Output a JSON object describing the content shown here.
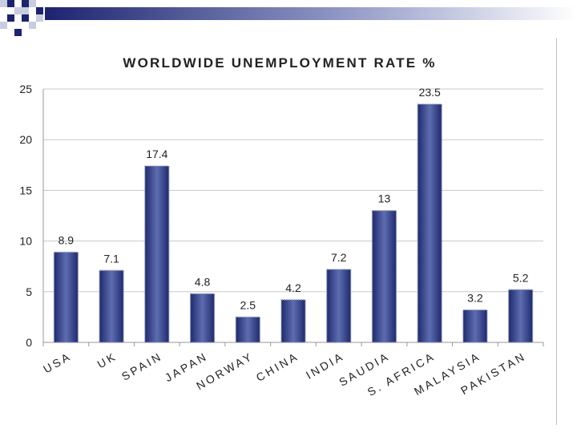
{
  "colors": {
    "bar": "#1f2a6e",
    "bar_highlight": "#5e6db0",
    "grid": "#c8c8c8",
    "deco_dark": "#1c2470",
    "deco_light": "#c9cde0"
  },
  "chart_data": {
    "type": "bar",
    "title": "WORLDWIDE UNEMPLOYMENT RATE %",
    "categories": [
      "USA",
      "UK",
      "SPAIN",
      "JAPAN",
      "NORWAY",
      "CHINA",
      "INDIA",
      "SAUDIA",
      "S. AFRICA",
      "MALAYSIA",
      "PAKISTAN"
    ],
    "values": [
      8.9,
      7.1,
      17.4,
      4.8,
      2.5,
      4.2,
      7.2,
      13,
      23.5,
      3.2,
      5.2
    ],
    "data_labels": [
      "8.9",
      "7.1",
      "17.4",
      "4.8",
      "2.5",
      "4.2",
      "7.2",
      "13",
      "23.5",
      "3.2",
      "5.2"
    ],
    "yticks": [
      "0",
      "5",
      "10",
      "15",
      "20",
      "25"
    ],
    "ylim": [
      0,
      25
    ],
    "grid": true,
    "legend": false,
    "xlabel": "",
    "ylabel": ""
  }
}
